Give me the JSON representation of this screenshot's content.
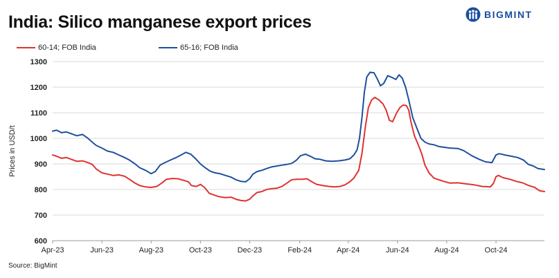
{
  "header": {
    "title": "India: Silico manganese export prices",
    "brand": "BIGMINT"
  },
  "source_note": "Source: BigMint",
  "colors": {
    "red_series": "#e03131",
    "blue_series": "#1d4f9c",
    "grid": "#d9d9d9",
    "brand": "#1a4e9c"
  },
  "icons": {
    "brand_logo": "bigmint-figures-logo"
  },
  "chart_data": {
    "type": "line",
    "title": "India: Silico manganese export prices",
    "ylabel": "Prices in USD/t",
    "xlabel": "",
    "ylim": [
      600,
      1300
    ],
    "yticks": [
      600,
      700,
      800,
      900,
      1000,
      1100,
      1200,
      1300
    ],
    "x_range": [
      "2023-04-01",
      "2024-11-30"
    ],
    "x_ticks": [
      {
        "date": "2023-04-01",
        "label": "Apr-23"
      },
      {
        "date": "2023-06-01",
        "label": "Jun-23"
      },
      {
        "date": "2023-08-01",
        "label": "Aug-23"
      },
      {
        "date": "2023-10-01",
        "label": "Oct-23"
      },
      {
        "date": "2023-12-01",
        "label": "Dec-23"
      },
      {
        "date": "2024-02-01",
        "label": "Feb-24"
      },
      {
        "date": "2024-04-01",
        "label": "Apr-24"
      },
      {
        "date": "2024-06-01",
        "label": "Jun-24"
      },
      {
        "date": "2024-08-01",
        "label": "Aug-24"
      },
      {
        "date": "2024-10-01",
        "label": "Oct-24"
      }
    ],
    "grid": "horizontal",
    "legend_position": "top-left",
    "series": [
      {
        "name": "60-14; FOB India",
        "color": "#e03131",
        "points": [
          [
            "2023-04-01",
            935
          ],
          [
            "2023-04-06",
            930
          ],
          [
            "2023-04-12",
            922
          ],
          [
            "2023-04-18",
            925
          ],
          [
            "2023-04-24",
            918
          ],
          [
            "2023-05-01",
            910
          ],
          [
            "2023-05-08",
            912
          ],
          [
            "2023-05-14",
            906
          ],
          [
            "2023-05-20",
            898
          ],
          [
            "2023-05-25",
            880
          ],
          [
            "2023-06-01",
            865
          ],
          [
            "2023-06-08",
            860
          ],
          [
            "2023-06-15",
            855
          ],
          [
            "2023-06-22",
            857
          ],
          [
            "2023-06-29",
            852
          ],
          [
            "2023-07-05",
            840
          ],
          [
            "2023-07-12",
            825
          ],
          [
            "2023-07-18",
            815
          ],
          [
            "2023-07-25",
            810
          ],
          [
            "2023-08-01",
            808
          ],
          [
            "2023-08-08",
            812
          ],
          [
            "2023-08-14",
            825
          ],
          [
            "2023-08-20",
            840
          ],
          [
            "2023-08-27",
            843
          ],
          [
            "2023-09-03",
            842
          ],
          [
            "2023-09-10",
            836
          ],
          [
            "2023-09-16",
            830
          ],
          [
            "2023-09-20",
            815
          ],
          [
            "2023-09-26",
            812
          ],
          [
            "2023-10-01",
            820
          ],
          [
            "2023-10-06",
            808
          ],
          [
            "2023-10-12",
            785
          ],
          [
            "2023-10-18",
            778
          ],
          [
            "2023-10-24",
            772
          ],
          [
            "2023-11-01",
            768
          ],
          [
            "2023-11-08",
            770
          ],
          [
            "2023-11-14",
            762
          ],
          [
            "2023-11-20",
            757
          ],
          [
            "2023-11-26",
            755
          ],
          [
            "2023-12-01",
            762
          ],
          [
            "2023-12-05",
            775
          ],
          [
            "2023-12-10",
            788
          ],
          [
            "2023-12-16",
            792
          ],
          [
            "2023-12-22",
            800
          ],
          [
            "2023-12-28",
            803
          ],
          [
            "2024-01-04",
            805
          ],
          [
            "2024-01-10",
            812
          ],
          [
            "2024-01-16",
            825
          ],
          [
            "2024-01-22",
            838
          ],
          [
            "2024-01-28",
            840
          ],
          [
            "2024-02-04",
            840
          ],
          [
            "2024-02-10",
            842
          ],
          [
            "2024-02-16",
            830
          ],
          [
            "2024-02-22",
            820
          ],
          [
            "2024-03-01",
            815
          ],
          [
            "2024-03-08",
            812
          ],
          [
            "2024-03-15",
            810
          ],
          [
            "2024-03-22",
            812
          ],
          [
            "2024-03-28",
            818
          ],
          [
            "2024-04-03",
            830
          ],
          [
            "2024-04-08",
            845
          ],
          [
            "2024-04-14",
            875
          ],
          [
            "2024-04-18",
            940
          ],
          [
            "2024-04-22",
            1040
          ],
          [
            "2024-04-26",
            1120
          ],
          [
            "2024-04-30",
            1150
          ],
          [
            "2024-05-04",
            1160
          ],
          [
            "2024-05-09",
            1150
          ],
          [
            "2024-05-14",
            1135
          ],
          [
            "2024-05-18",
            1110
          ],
          [
            "2024-05-22",
            1070
          ],
          [
            "2024-05-26",
            1065
          ],
          [
            "2024-05-31",
            1100
          ],
          [
            "2024-06-04",
            1120
          ],
          [
            "2024-06-08",
            1130
          ],
          [
            "2024-06-12",
            1128
          ],
          [
            "2024-06-15",
            1110
          ],
          [
            "2024-06-18",
            1060
          ],
          [
            "2024-06-22",
            1010
          ],
          [
            "2024-06-26",
            980
          ],
          [
            "2024-07-01",
            940
          ],
          [
            "2024-07-05",
            895
          ],
          [
            "2024-07-10",
            865
          ],
          [
            "2024-07-16",
            845
          ],
          [
            "2024-07-22",
            838
          ],
          [
            "2024-07-28",
            832
          ],
          [
            "2024-08-05",
            825
          ],
          [
            "2024-08-15",
            826
          ],
          [
            "2024-08-25",
            822
          ],
          [
            "2024-09-04",
            818
          ],
          [
            "2024-09-14",
            812
          ],
          [
            "2024-09-24",
            810
          ],
          [
            "2024-09-28",
            825
          ],
          [
            "2024-10-01",
            850
          ],
          [
            "2024-10-04",
            855
          ],
          [
            "2024-10-10",
            846
          ],
          [
            "2024-10-18",
            840
          ],
          [
            "2024-10-26",
            832
          ],
          [
            "2024-11-03",
            826
          ],
          [
            "2024-11-10",
            816
          ],
          [
            "2024-11-18",
            808
          ],
          [
            "2024-11-24",
            795
          ],
          [
            "2024-11-30",
            792
          ]
        ]
      },
      {
        "name": "65-16; FOB India",
        "color": "#1d4f9c",
        "points": [
          [
            "2023-04-01",
            1028
          ],
          [
            "2023-04-06",
            1032
          ],
          [
            "2023-04-12",
            1022
          ],
          [
            "2023-04-18",
            1025
          ],
          [
            "2023-04-24",
            1018
          ],
          [
            "2023-05-01",
            1010
          ],
          [
            "2023-05-08",
            1015
          ],
          [
            "2023-05-14",
            1002
          ],
          [
            "2023-05-20",
            985
          ],
          [
            "2023-05-25",
            972
          ],
          [
            "2023-06-01",
            962
          ],
          [
            "2023-06-08",
            950
          ],
          [
            "2023-06-15",
            945
          ],
          [
            "2023-06-22",
            935
          ],
          [
            "2023-06-29",
            925
          ],
          [
            "2023-07-05",
            915
          ],
          [
            "2023-07-12",
            900
          ],
          [
            "2023-07-18",
            885
          ],
          [
            "2023-07-25",
            875
          ],
          [
            "2023-08-01",
            862
          ],
          [
            "2023-08-06",
            870
          ],
          [
            "2023-08-12",
            895
          ],
          [
            "2023-08-18",
            905
          ],
          [
            "2023-08-25",
            915
          ],
          [
            "2023-09-01",
            925
          ],
          [
            "2023-09-07",
            935
          ],
          [
            "2023-09-13",
            945
          ],
          [
            "2023-09-19",
            938
          ],
          [
            "2023-09-25",
            920
          ],
          [
            "2023-10-01",
            900
          ],
          [
            "2023-10-07",
            885
          ],
          [
            "2023-10-13",
            872
          ],
          [
            "2023-10-19",
            865
          ],
          [
            "2023-10-25",
            862
          ],
          [
            "2023-11-01",
            855
          ],
          [
            "2023-11-08",
            848
          ],
          [
            "2023-11-14",
            838
          ],
          [
            "2023-11-20",
            832
          ],
          [
            "2023-11-26",
            830
          ],
          [
            "2023-12-01",
            842
          ],
          [
            "2023-12-05",
            860
          ],
          [
            "2023-12-10",
            870
          ],
          [
            "2023-12-16",
            875
          ],
          [
            "2023-12-22",
            882
          ],
          [
            "2023-12-28",
            888
          ],
          [
            "2024-01-04",
            892
          ],
          [
            "2024-01-10",
            895
          ],
          [
            "2024-01-16",
            898
          ],
          [
            "2024-01-22",
            902
          ],
          [
            "2024-01-28",
            915
          ],
          [
            "2024-02-02",
            932
          ],
          [
            "2024-02-08",
            938
          ],
          [
            "2024-02-14",
            930
          ],
          [
            "2024-02-20",
            920
          ],
          [
            "2024-02-26",
            918
          ],
          [
            "2024-03-04",
            912
          ],
          [
            "2024-03-12",
            910
          ],
          [
            "2024-03-20",
            912
          ],
          [
            "2024-03-28",
            915
          ],
          [
            "2024-04-03",
            920
          ],
          [
            "2024-04-08",
            935
          ],
          [
            "2024-04-12",
            955
          ],
          [
            "2024-04-15",
            1000
          ],
          [
            "2024-04-18",
            1080
          ],
          [
            "2024-04-21",
            1180
          ],
          [
            "2024-04-24",
            1240
          ],
          [
            "2024-04-28",
            1258
          ],
          [
            "2024-05-03",
            1256
          ],
          [
            "2024-05-07",
            1232
          ],
          [
            "2024-05-11",
            1205
          ],
          [
            "2024-05-15",
            1215
          ],
          [
            "2024-05-20",
            1245
          ],
          [
            "2024-05-25",
            1238
          ],
          [
            "2024-05-30",
            1230
          ],
          [
            "2024-06-03",
            1248
          ],
          [
            "2024-06-07",
            1235
          ],
          [
            "2024-06-11",
            1200
          ],
          [
            "2024-06-15",
            1150
          ],
          [
            "2024-06-20",
            1080
          ],
          [
            "2024-06-25",
            1040
          ],
          [
            "2024-06-30",
            1000
          ],
          [
            "2024-07-05",
            985
          ],
          [
            "2024-07-10",
            978
          ],
          [
            "2024-07-16",
            975
          ],
          [
            "2024-07-22",
            968
          ],
          [
            "2024-07-28",
            965
          ],
          [
            "2024-08-05",
            962
          ],
          [
            "2024-08-15",
            960
          ],
          [
            "2024-08-22",
            952
          ],
          [
            "2024-09-01",
            932
          ],
          [
            "2024-09-10",
            918
          ],
          [
            "2024-09-18",
            908
          ],
          [
            "2024-09-26",
            905
          ],
          [
            "2024-10-01",
            935
          ],
          [
            "2024-10-05",
            940
          ],
          [
            "2024-10-12",
            935
          ],
          [
            "2024-10-20",
            930
          ],
          [
            "2024-10-28",
            925
          ],
          [
            "2024-11-04",
            915
          ],
          [
            "2024-11-10",
            898
          ],
          [
            "2024-11-16",
            892
          ],
          [
            "2024-11-22",
            882
          ],
          [
            "2024-11-30",
            878
          ]
        ]
      }
    ]
  }
}
